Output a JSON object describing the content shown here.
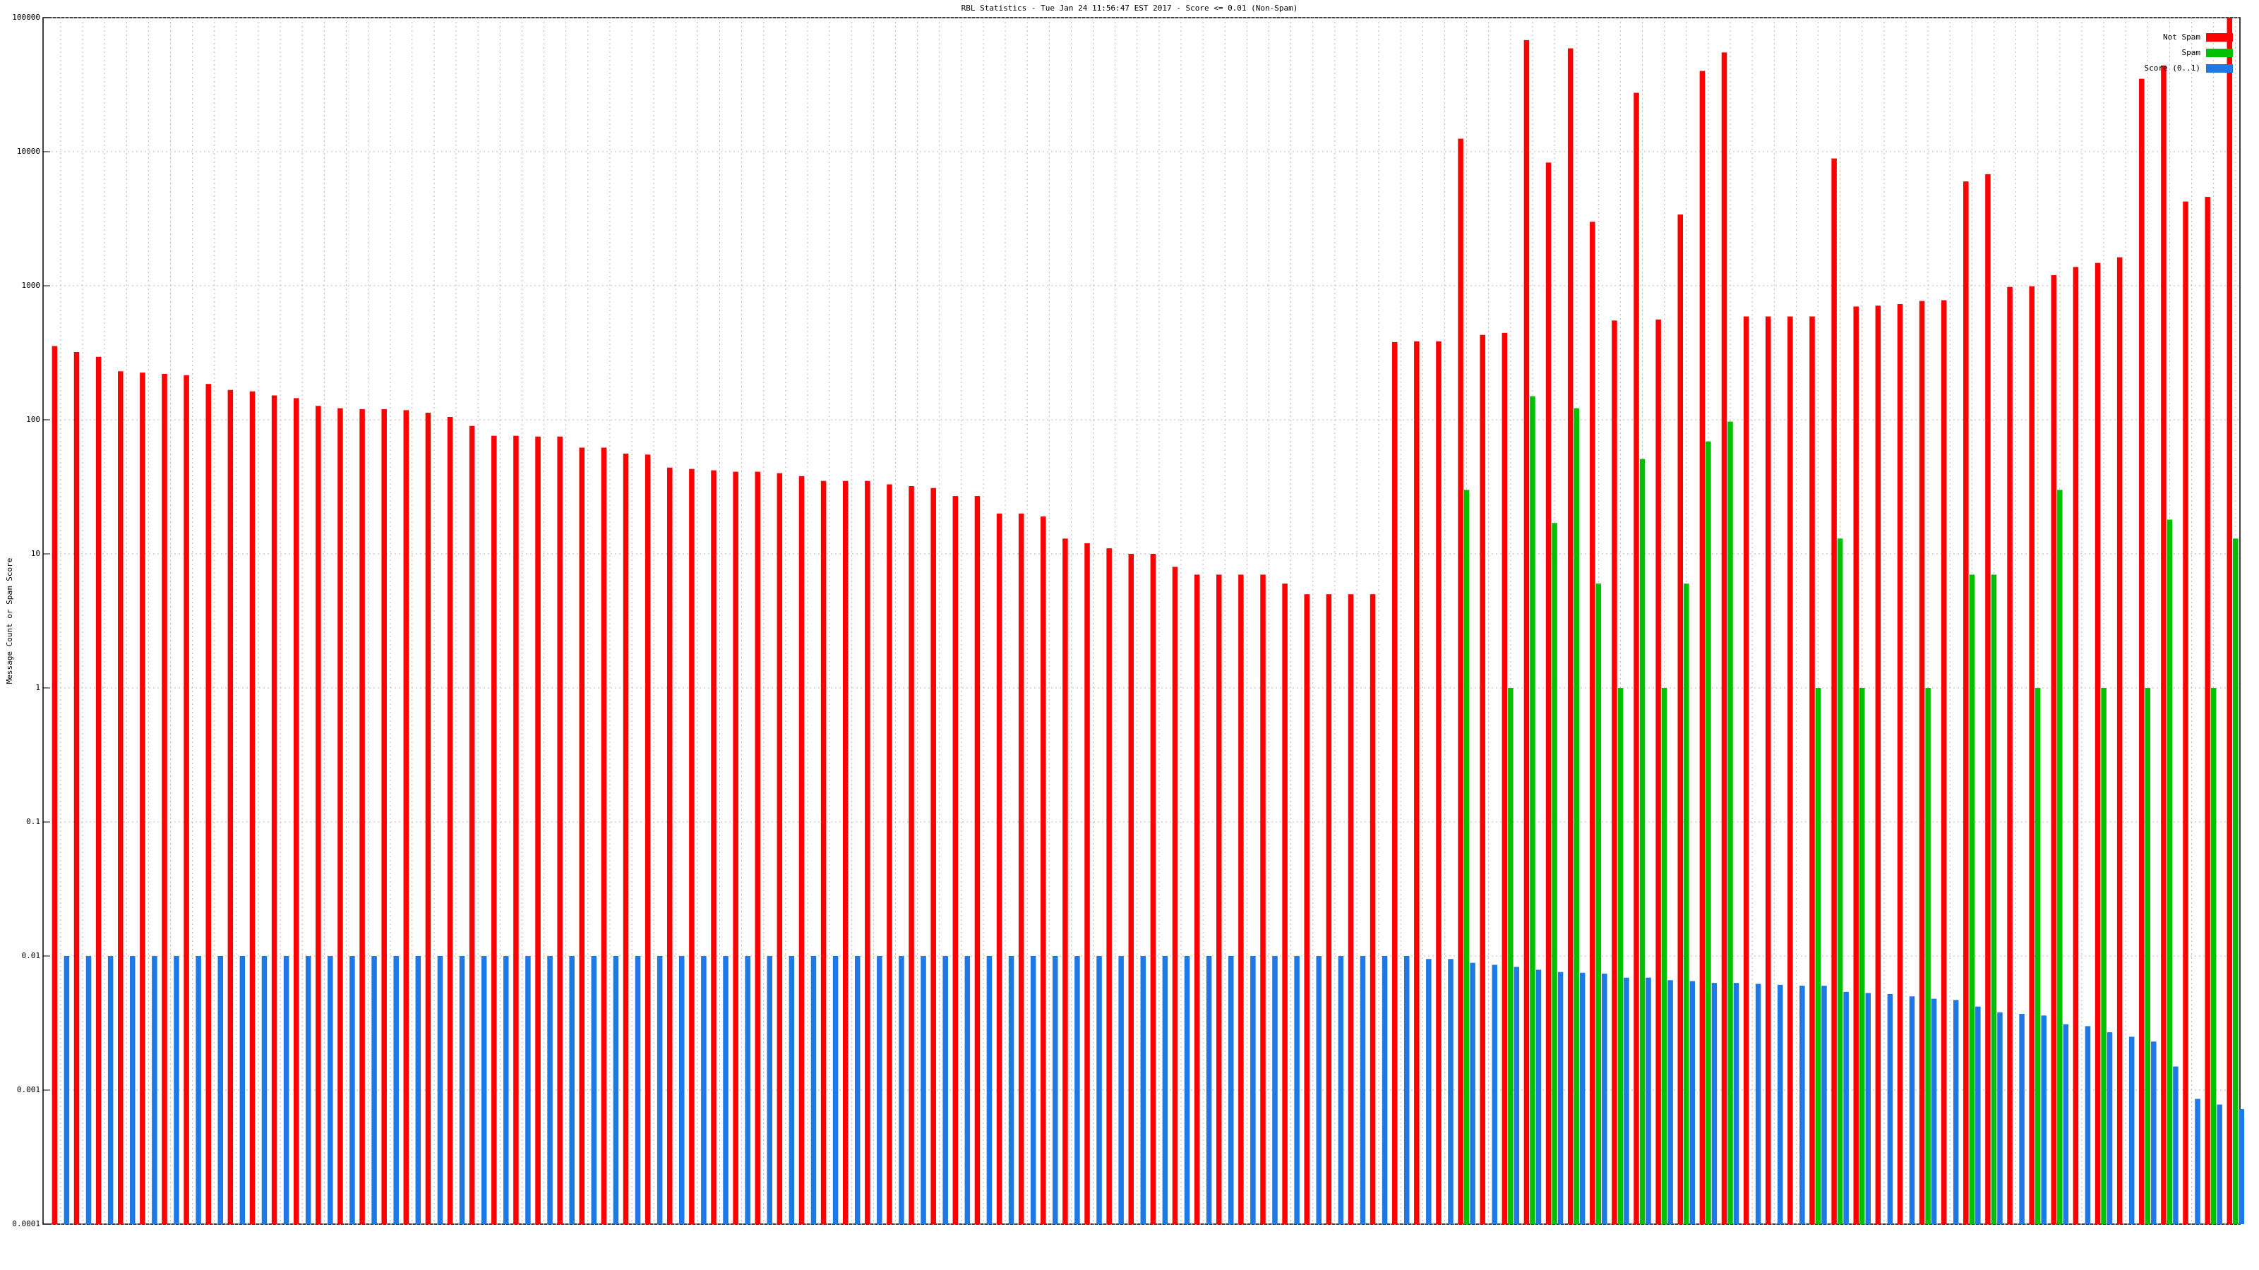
{
  "chart_data": {
    "type": "bar",
    "title": "RBL Statistics - Tue Jan 24 11:56:47 EST 2017 - Score <= 0.01 (Non-Spam)",
    "y_label": "Message Count or Spam Score",
    "log_scale": true,
    "grid": true,
    "legend": "upper right",
    "categories": [
      null,
      null,
      null,
      null,
      null,
      null,
      null,
      null,
      null,
      null,
      null,
      null,
      null,
      null,
      null,
      null,
      null,
      null,
      null,
      null,
      null,
      null,
      null,
      null,
      null,
      null,
      null,
      null,
      null,
      null,
      null,
      null,
      null,
      null,
      null,
      null,
      null,
      null,
      null,
      null,
      null,
      null,
      null,
      null,
      null,
      null,
      null,
      null,
      null,
      null,
      null,
      null,
      null,
      null,
      null,
      null,
      null,
      null,
      null,
      null,
      null,
      null,
      null,
      null,
      null,
      null,
      null,
      null,
      null,
      null,
      null,
      null,
      null,
      null,
      null,
      null,
      null,
      null,
      null,
      null,
      null,
      null,
      null,
      null,
      null,
      null,
      null,
      null,
      null,
      null,
      null,
      null,
      null,
      null,
      null,
      null,
      null,
      null,
      null,
      null
    ],
    "series": [
      {
        "name": "Not Spam",
        "color": "#ff0000",
        "values": [
          355,
          320,
          295,
          230,
          225,
          220,
          215,
          185,
          167,
          163,
          152,
          145,
          127,
          122,
          120,
          120,
          118,
          113,
          105,
          90,
          76,
          76,
          75,
          75,
          62,
          62,
          56,
          55,
          44,
          43,
          42,
          41,
          41,
          40,
          38,
          35,
          35,
          35,
          33,
          32,
          31,
          27,
          27,
          20,
          20,
          19,
          13,
          12,
          11,
          10,
          10,
          8,
          7,
          7,
          7,
          7,
          6,
          5,
          5,
          5,
          5,
          380,
          385,
          385,
          12500,
          430,
          445,
          68000,
          8300,
          59000,
          3000,
          550,
          27500,
          560,
          3400,
          40000,
          55000,
          590,
          590,
          590,
          590,
          8900,
          700,
          710,
          730,
          770,
          780,
          6000,
          6800,
          980,
          990,
          1200,
          1380,
          1480,
          1630,
          35000,
          44000,
          4250,
          4600,
          100000
        ]
      },
      {
        "name": "Spam",
        "color": "#00c000",
        "values": [
          null,
          null,
          null,
          null,
          null,
          null,
          null,
          null,
          null,
          null,
          null,
          null,
          null,
          null,
          null,
          null,
          null,
          null,
          null,
          null,
          null,
          null,
          null,
          null,
          null,
          null,
          null,
          null,
          null,
          null,
          null,
          null,
          null,
          null,
          null,
          null,
          null,
          null,
          null,
          null,
          null,
          null,
          null,
          null,
          null,
          null,
          null,
          null,
          null,
          null,
          null,
          null,
          null,
          null,
          null,
          null,
          null,
          null,
          null,
          null,
          null,
          null,
          null,
          null,
          30,
          null,
          1,
          150,
          17,
          122,
          6,
          1,
          51,
          1,
          6,
          69,
          97,
          null,
          null,
          null,
          1,
          13,
          1,
          null,
          null,
          1,
          null,
          7,
          7,
          null,
          1,
          30,
          null,
          1,
          null,
          1,
          18,
          null,
          1,
          13
        ]
      },
      {
        "name": "Score (0..1)",
        "color": "#1e78e6",
        "values": [
          0.01,
          0.01,
          0.01,
          0.01,
          0.01,
          0.01,
          0.01,
          0.01,
          0.01,
          0.01,
          0.01,
          0.01,
          0.01,
          0.01,
          0.01,
          0.01,
          0.01,
          0.01,
          0.01,
          0.01,
          0.01,
          0.01,
          0.01,
          0.01,
          0.01,
          0.01,
          0.01,
          0.01,
          0.01,
          0.01,
          0.01,
          0.01,
          0.01,
          0.01,
          0.01,
          0.01,
          0.01,
          0.01,
          0.01,
          0.01,
          0.01,
          0.01,
          0.01,
          0.01,
          0.01,
          0.01,
          0.01,
          0.01,
          0.01,
          0.01,
          0.01,
          0.01,
          0.01,
          0.01,
          0.01,
          0.01,
          0.01,
          0.01,
          0.01,
          0.01,
          0.01,
          0.01,
          0.0095,
          0.0095,
          0.0089,
          0.0086,
          0.0083,
          0.0079,
          0.0076,
          0.0075,
          0.0074,
          0.0069,
          0.0069,
          0.0066,
          0.0065,
          0.0063,
          0.0063,
          0.0062,
          0.0061,
          0.006,
          0.006,
          0.0054,
          0.0053,
          0.0052,
          0.005,
          0.0048,
          0.0047,
          0.0042,
          0.0038,
          0.0037,
          0.0036,
          0.0031,
          0.003,
          0.0027,
          0.0025,
          0.0023,
          0.0015,
          0.00086,
          0.00078,
          0.00072
        ]
      }
    ],
    "ylim": [
      0.0001,
      100000
    ],
    "yticks": [
      0.0001,
      0.001,
      0.01,
      0.1,
      1,
      10,
      100,
      1000,
      10000,
      100000
    ]
  }
}
